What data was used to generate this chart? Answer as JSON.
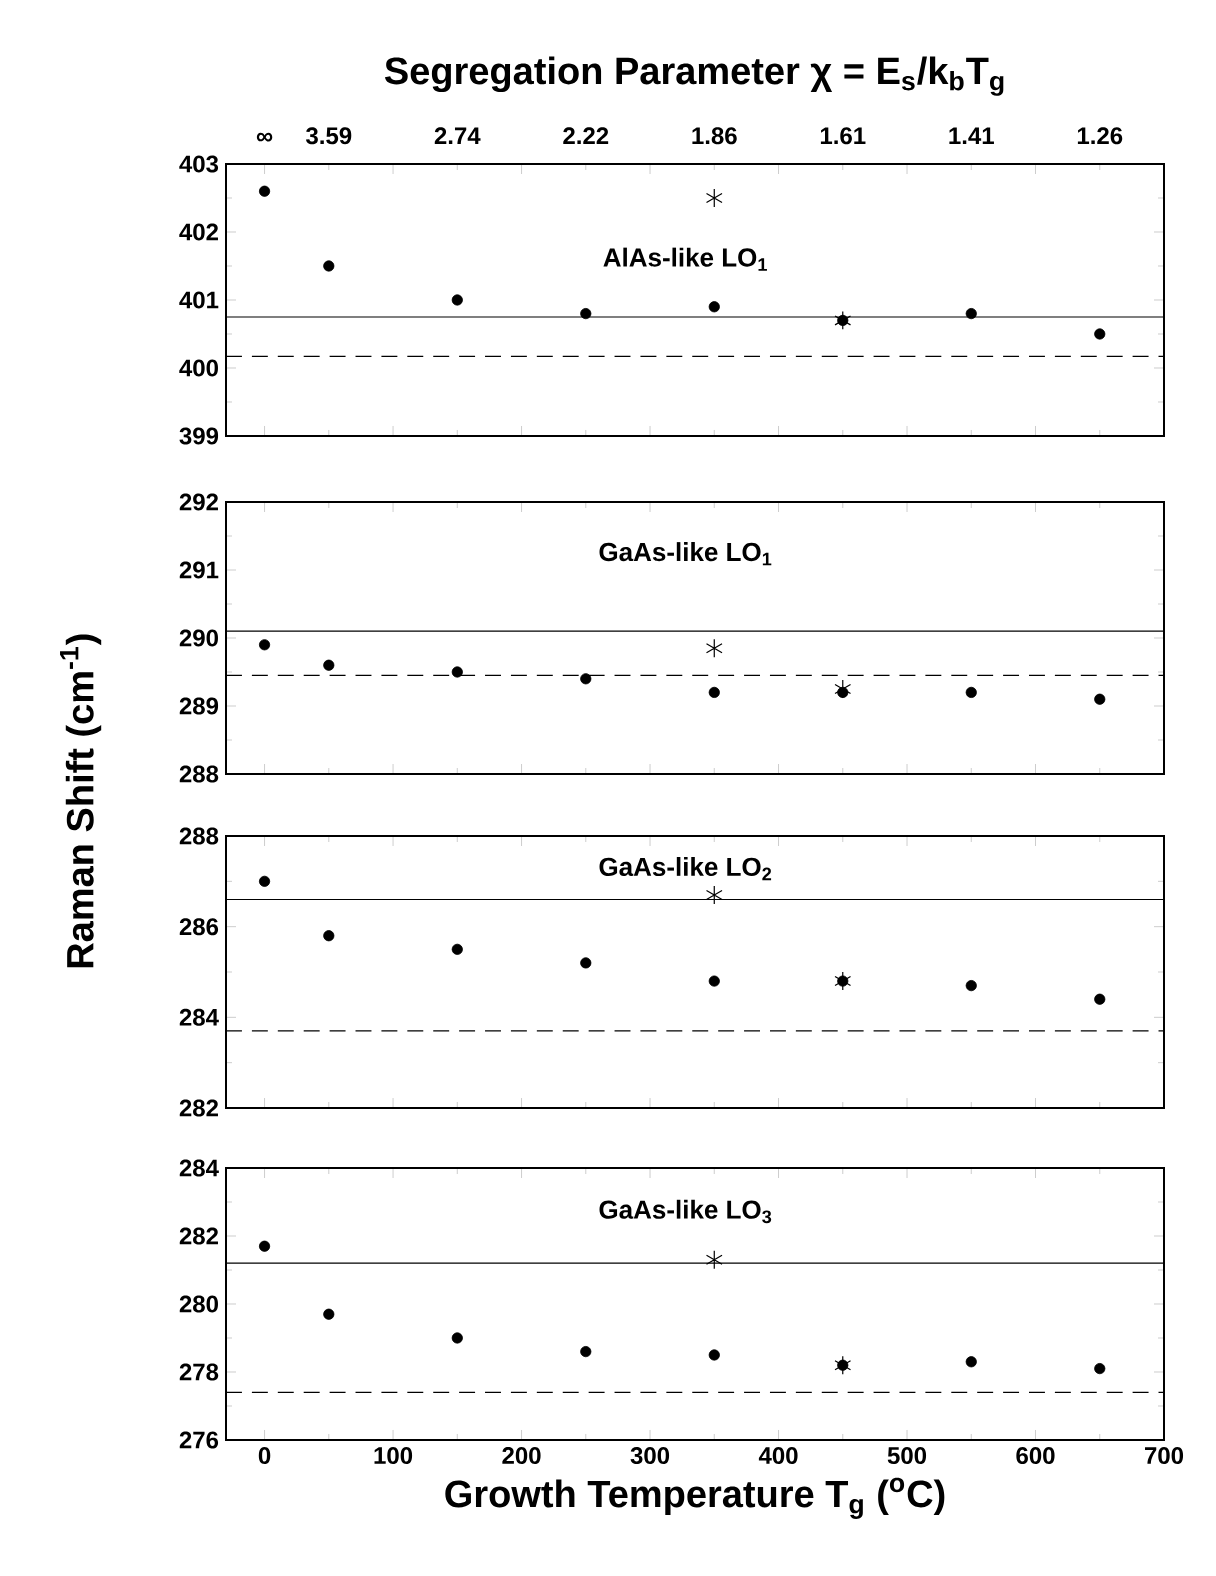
{
  "chart_data": [
    {
      "type": "scatter",
      "x2label": "Segregation Parameter χ = E$_{s}$/k$_{b}$T$_{g}$",
      "annotations": [
        "AlAs-like LO$_{1}$",
        "∞",
        "3.59",
        "2.74",
        "2.22",
        "1.86",
        "1.61",
        "1.41",
        "1.26"
      ],
      "xlim": [
        -30,
        700
      ],
      "xticks": [
        0,
        100,
        200,
        300,
        400,
        500,
        600,
        700
      ],
      "ylim": [
        399,
        403
      ],
      "yticks": [
        399,
        400,
        401,
        402,
        403
      ],
      "tick_labels": "y",
      "series": [
        {
          "marker": "circle",
          "color": "#000000",
          "x": [
            0,
            50,
            150,
            250,
            350,
            450,
            550,
            650
          ],
          "values": [
            402.6,
            401.5,
            401.0,
            400.8,
            400.9,
            400.7,
            400.8,
            400.5
          ]
        },
        {
          "marker": "cross",
          "color": "#000000",
          "x": [
            350,
            450
          ],
          "values": [
            402.5,
            400.7
          ]
        }
      ],
      "ref_lines": [
        {
          "axis": "y",
          "value": 400.75,
          "line_style": "solid"
        },
        {
          "axis": "y",
          "value": 400.17,
          "line_style": "dashed"
        }
      ]
    },
    {
      "type": "scatter",
      "ylabel": "Raman Shift (cm$^{-1}$)",
      "annotations": [
        "GaAs-like LO$_{1}$"
      ],
      "xlim": [
        -30,
        700
      ],
      "xticks": [
        0,
        100,
        200,
        300,
        400,
        500,
        600,
        700
      ],
      "ylim": [
        288,
        292
      ],
      "yticks": [
        288,
        289,
        290,
        291,
        292
      ],
      "tick_labels": "y",
      "series": [
        {
          "marker": "circle",
          "color": "#000000",
          "x": [
            0,
            50,
            150,
            250,
            350,
            450,
            550,
            650
          ],
          "values": [
            289.9,
            289.6,
            289.5,
            289.4,
            289.2,
            289.2,
            289.2,
            289.1
          ]
        },
        {
          "marker": "cross",
          "color": "#000000",
          "x": [
            350,
            450
          ],
          "values": [
            289.85,
            289.25
          ]
        }
      ],
      "ref_lines": [
        {
          "axis": "y",
          "value": 290.1,
          "line_style": "solid"
        },
        {
          "axis": "y",
          "value": 289.45,
          "line_style": "dashed"
        }
      ]
    },
    {
      "type": "scatter",
      "annotations": [
        "GaAs-like LO$_{2}$"
      ],
      "xlim": [
        -30,
        700
      ],
      "xticks": [
        0,
        100,
        200,
        300,
        400,
        500,
        600,
        700
      ],
      "ylim": [
        282,
        288
      ],
      "yticks": [
        282,
        284,
        286,
        288
      ],
      "tick_labels": "y",
      "series": [
        {
          "marker": "circle",
          "color": "#000000",
          "x": [
            0,
            50,
            150,
            250,
            350,
            450,
            550,
            650
          ],
          "values": [
            287.0,
            285.8,
            285.5,
            285.2,
            284.8,
            284.8,
            284.7,
            284.4
          ]
        },
        {
          "marker": "cross",
          "color": "#000000",
          "x": [
            350,
            450
          ],
          "values": [
            286.7,
            284.8
          ]
        }
      ],
      "ref_lines": [
        {
          "axis": "y",
          "value": 286.6,
          "line_style": "solid"
        },
        {
          "axis": "y",
          "value": 283.7,
          "line_style": "dashed"
        }
      ]
    },
    {
      "type": "scatter",
      "xlabel": "Growth Temperature T$_{g}$ ($^{o}$C)",
      "annotations": [
        "GaAs-like LO$_{3}$"
      ],
      "xlim": [
        -30,
        700
      ],
      "xticks": [
        0,
        100,
        200,
        300,
        400,
        500,
        600,
        700
      ],
      "ylim": [
        276,
        284
      ],
      "yticks": [
        276,
        278,
        280,
        282,
        284
      ],
      "series": [
        {
          "marker": "circle",
          "color": "#000000",
          "x": [
            0,
            50,
            150,
            250,
            350,
            450,
            550,
            650
          ],
          "values": [
            281.7,
            279.7,
            279.0,
            278.6,
            278.5,
            278.2,
            278.3,
            278.1
          ]
        },
        {
          "marker": "cross",
          "color": "#000000",
          "x": [
            350,
            450
          ],
          "values": [
            281.3,
            278.2
          ]
        }
      ],
      "ref_lines": [
        {
          "axis": "y",
          "value": 281.2,
          "line_style": "solid"
        },
        {
          "axis": "y",
          "value": 277.4,
          "line_style": "dashed"
        }
      ]
    }
  ]
}
